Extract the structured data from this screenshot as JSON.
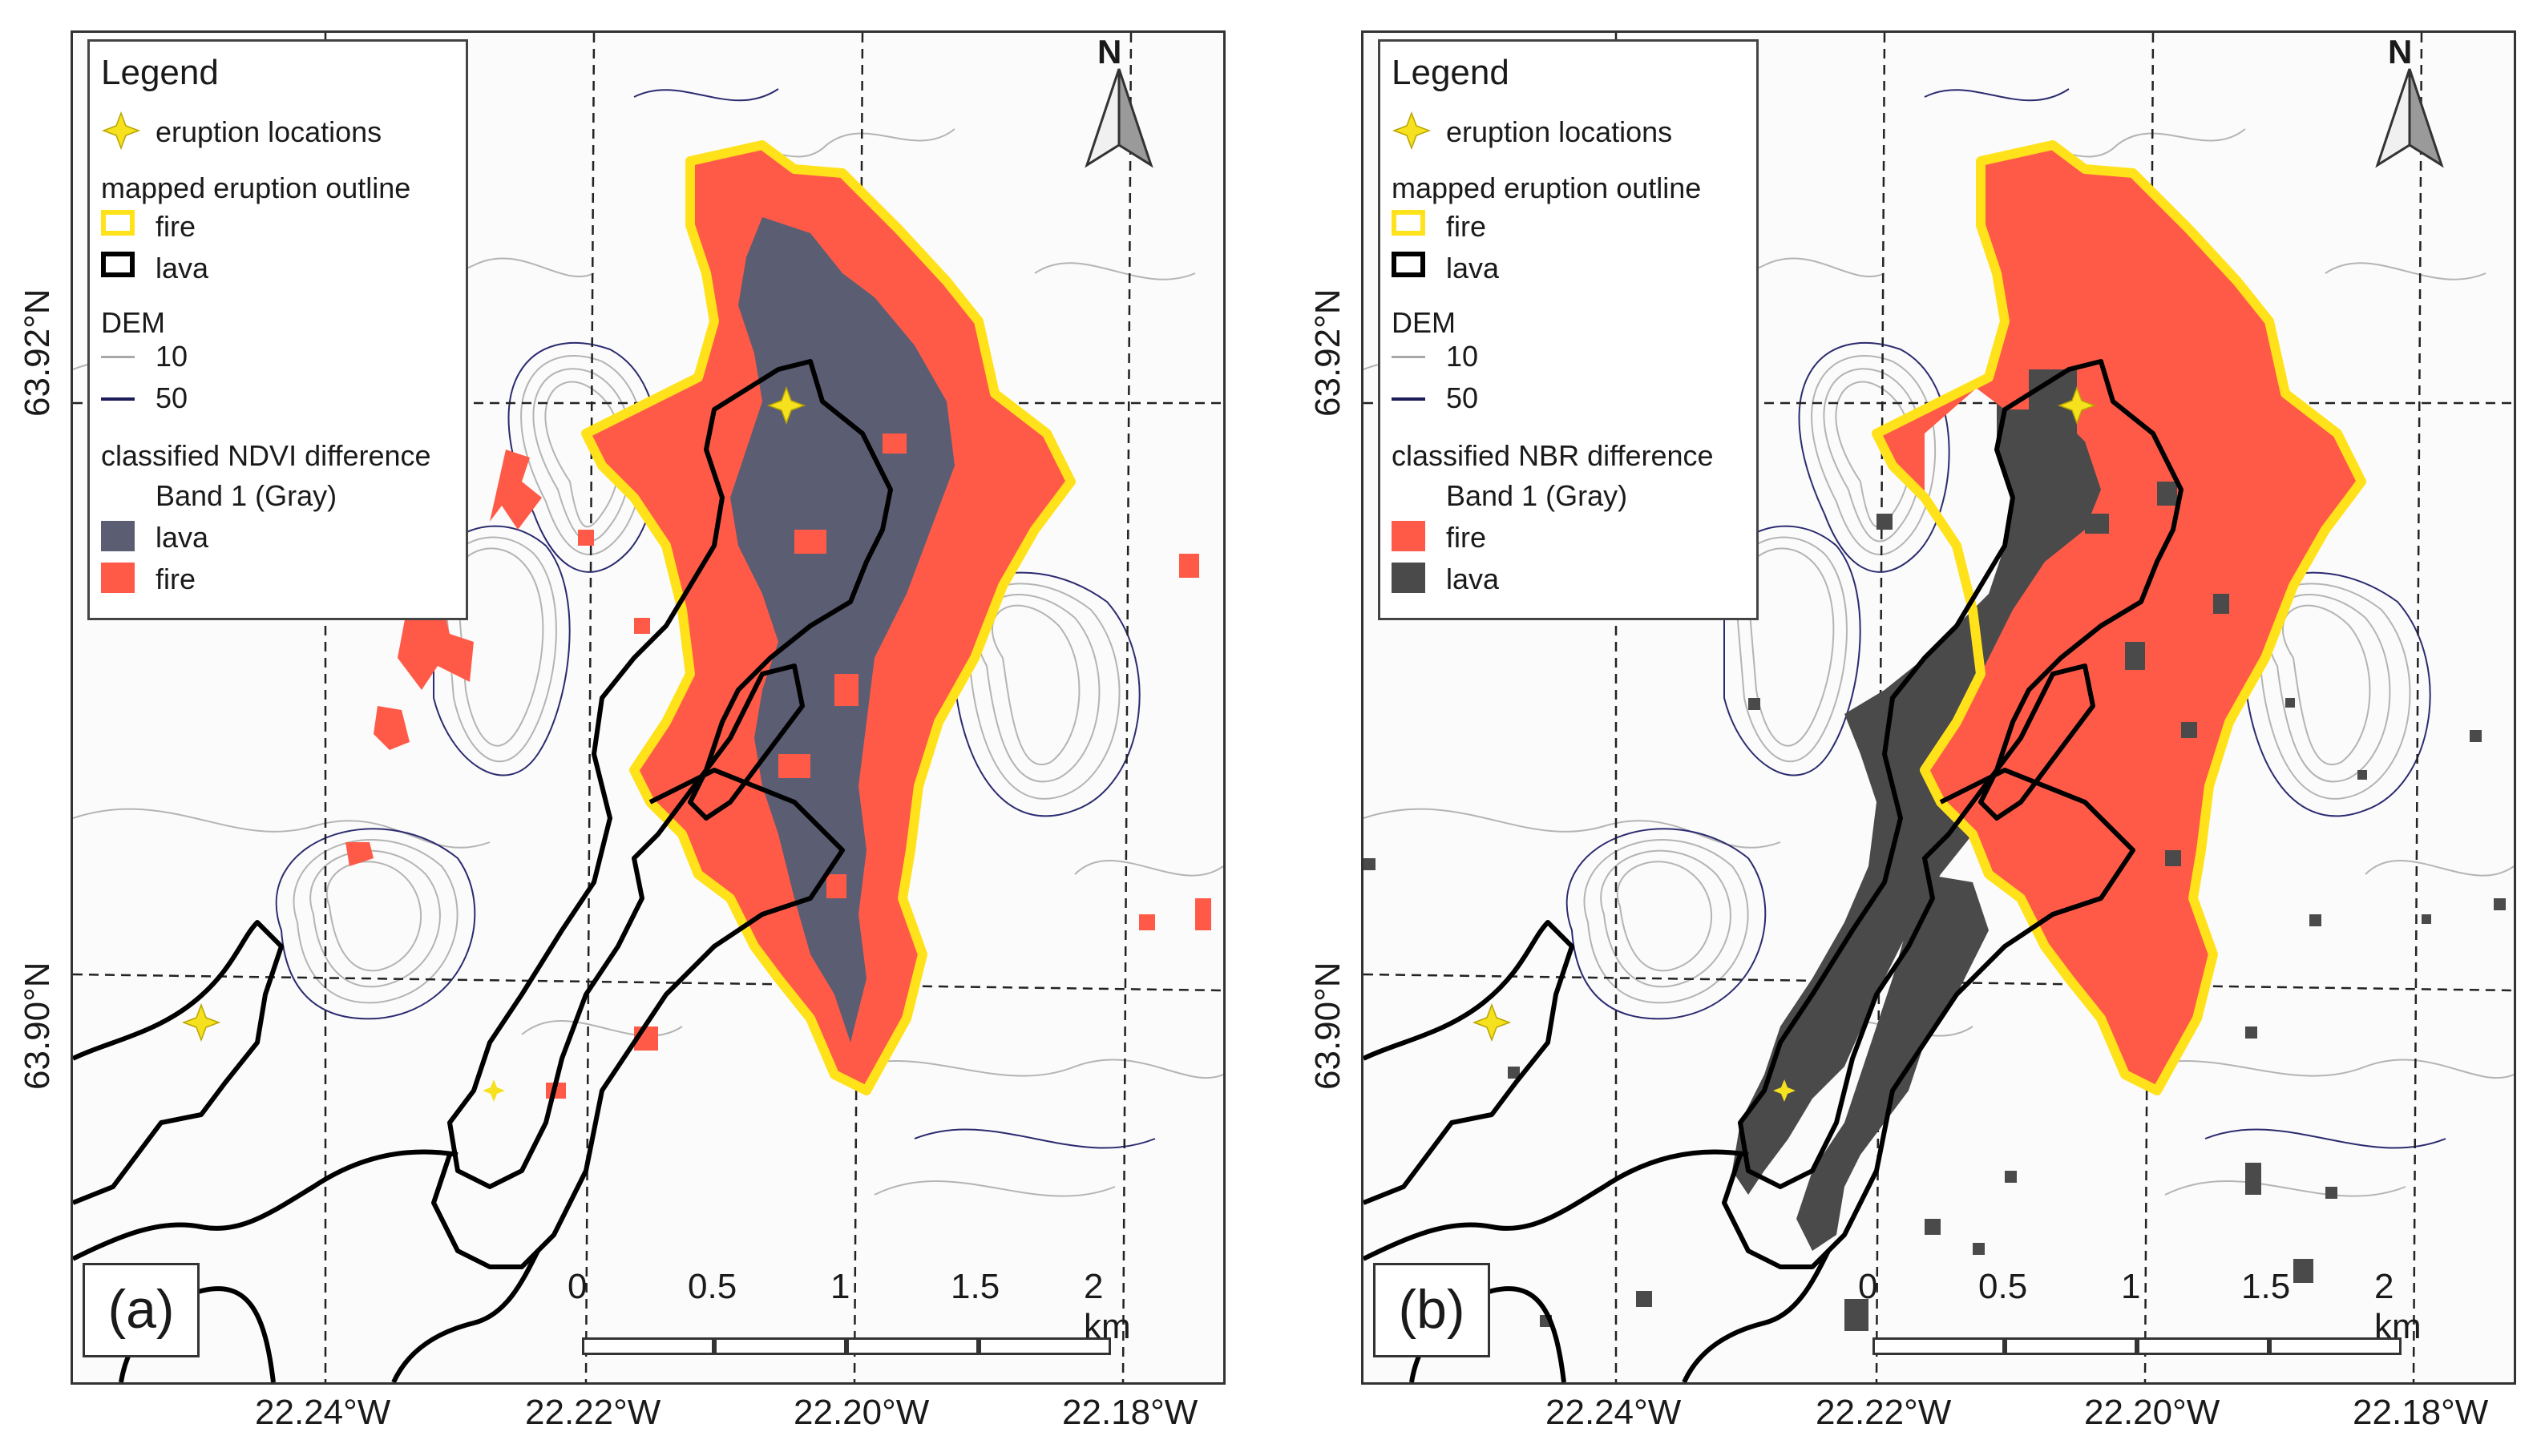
{
  "colors": {
    "fire": "#ff5a48",
    "lava_ndvi": "#5b5d73",
    "lava_nbr": "#4a4a4a",
    "fire_outline": "#ffe21a",
    "lava_outline": "#000000",
    "dem_10": "#a8a8a8",
    "dem_50": "#1c1c5a",
    "eruption_marker": "#f5e11e"
  },
  "lat_labels": [
    "63.92°N",
    "63.90°N"
  ],
  "lon_labels": [
    "22.24°W",
    "22.22°W",
    "22.20°W",
    "22.18°W"
  ],
  "north_arrow": {
    "label": "N",
    "icon": "north-arrow-icon"
  },
  "scale": {
    "ticks": [
      "0",
      "0.5",
      "1",
      "1.5",
      "2 km"
    ]
  },
  "panels": [
    {
      "id": "a",
      "label": "(a)",
      "legend": {
        "title": "Legend",
        "eruption_locations": "eruption locations",
        "outline_heading": "mapped eruption outline",
        "outline_fire": "fire",
        "outline_lava": "lava",
        "dem_heading": "DEM",
        "dem_10": "10",
        "dem_50": "50",
        "classified_heading": "classified NDVI difference",
        "band": "Band 1 (Gray)",
        "class_1": "lava",
        "class_2": "fire"
      }
    },
    {
      "id": "b",
      "label": "(b)",
      "legend": {
        "title": "Legend",
        "eruption_locations": "eruption locations",
        "outline_heading": "mapped eruption outline",
        "outline_fire": "fire",
        "outline_lava": "lava",
        "dem_heading": "DEM",
        "dem_10": "10",
        "dem_50": "50",
        "classified_heading": "classified NBR difference",
        "band": "Band 1 (Gray)",
        "class_1": "fire",
        "class_2": "lava"
      }
    }
  ]
}
